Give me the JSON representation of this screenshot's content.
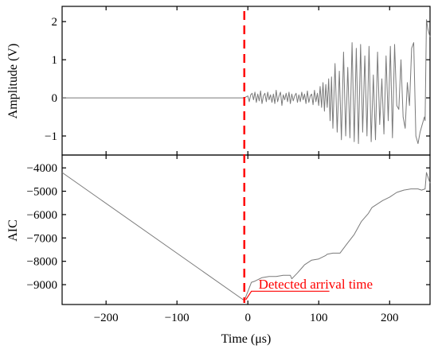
{
  "chart_data": [
    {
      "type": "line",
      "panel": "top",
      "ylabel": "Amplitude (V)",
      "xlabel": "",
      "xlim": [
        -262,
        257
      ],
      "ylim": [
        -1.5,
        2.4
      ],
      "yticks": [
        -1,
        0,
        1,
        2
      ],
      "ytick_labels": [
        "−1",
        "0",
        "1",
        "2"
      ],
      "grid": false,
      "series": [
        {
          "color": "#7a7a7a",
          "x": [
            -262,
            -5,
            0,
            2,
            4,
            6,
            8,
            10,
            12,
            14,
            16,
            18,
            20,
            22,
            24,
            26,
            28,
            30,
            32,
            34,
            36,
            38,
            40,
            42,
            44,
            46,
            48,
            50,
            52,
            54,
            56,
            58,
            60,
            62,
            64,
            66,
            68,
            70,
            72,
            74,
            76,
            78,
            80,
            82,
            84,
            86,
            88,
            90,
            92,
            94,
            96,
            98,
            100,
            102,
            104,
            106,
            108,
            110,
            112,
            114,
            116,
            118,
            120,
            123,
            126,
            129,
            132,
            135,
            138,
            141,
            144,
            147,
            150,
            153,
            156,
            159,
            162,
            165,
            168,
            171,
            174,
            177,
            180,
            183,
            186,
            189,
            192,
            195,
            198,
            201,
            204,
            207,
            210,
            213,
            216,
            219,
            222,
            225,
            228,
            231,
            234,
            237,
            240,
            243,
            246,
            249,
            250,
            252,
            254,
            257
          ],
          "y": [
            0,
            0,
            0.05,
            -0.1,
            0.08,
            0.12,
            -0.05,
            0.15,
            -0.12,
            0.1,
            -0.08,
            0.18,
            -0.15,
            0.05,
            0.12,
            -0.1,
            0.15,
            -0.05,
            0.08,
            -0.12,
            0.1,
            -0.15,
            0.2,
            -0.1,
            0.05,
            0.15,
            -0.2,
            0.08,
            -0.05,
            0.12,
            -0.1,
            0.15,
            -0.15,
            0.1,
            -0.08,
            0.05,
            0.12,
            -0.12,
            0.08,
            -0.1,
            0.15,
            -0.05,
            0.1,
            -0.15,
            0.18,
            -0.12,
            0.05,
            0.1,
            -0.18,
            0.2,
            -0.1,
            0.12,
            -0.2,
            0.3,
            -0.25,
            0.4,
            -0.35,
            0.35,
            -0.25,
            0.5,
            -0.6,
            0.55,
            -0.8,
            0.9,
            -0.9,
            0.7,
            -1.1,
            1.2,
            -1.0,
            0.8,
            -1.05,
            1.45,
            -1.15,
            1.3,
            -1.2,
            1.4,
            -0.9,
            1.1,
            -1.0,
            1.35,
            -1.15,
            0.6,
            -1.1,
            1.2,
            -0.7,
            0.5,
            -0.95,
            1.1,
            -0.6,
            1.35,
            -1.05,
            1.4,
            -0.2,
            -0.3,
            1.0,
            -0.5,
            -0.8,
            0.4,
            -0.2,
            1.3,
            1.45,
            -1.0,
            -1.2,
            -0.9,
            -0.7,
            -0.5,
            -0.6,
            2.05,
            1.8,
            1.6
          ]
        }
      ]
    },
    {
      "type": "line",
      "panel": "bottom",
      "ylabel": "AIC",
      "xlabel": "Time (μs)",
      "xlim": [
        -262,
        257
      ],
      "ylim": [
        -9850,
        -3450
      ],
      "yticks": [
        -9000,
        -8000,
        -7000,
        -6000,
        -5000,
        -4000
      ],
      "ytick_labels": [
        "−9000",
        "−8000",
        "−7000",
        "−6000",
        "−5000",
        "−4000"
      ],
      "xticks": [
        -200,
        -100,
        0,
        100,
        200
      ],
      "xtick_labels": [
        "−200",
        "−100",
        "0",
        "100",
        "200"
      ],
      "grid": false,
      "series": [
        {
          "color": "#7a7a7a",
          "x": [
            -262,
            -5,
            -2,
            0,
            5,
            10,
            20,
            30,
            40,
            50,
            60,
            62,
            70,
            80,
            90,
            100,
            110,
            112,
            120,
            130,
            140,
            150,
            160,
            170,
            175,
            190,
            200,
            210,
            220,
            230,
            240,
            245,
            250,
            252,
            257
          ],
          "y": [
            -4200,
            -9680,
            -9450,
            -9300,
            -8900,
            -8850,
            -8700,
            -8650,
            -8650,
            -8600,
            -8600,
            -8750,
            -8500,
            -8150,
            -7950,
            -7900,
            -7750,
            -7700,
            -7650,
            -7650,
            -7250,
            -6850,
            -6300,
            -5950,
            -5700,
            -5400,
            -5250,
            -5050,
            -4950,
            -4900,
            -4900,
            -4950,
            -4900,
            -4200,
            -4650
          ]
        }
      ]
    }
  ],
  "detection": {
    "time": -5,
    "color": "#ff0000",
    "label": "Detected arrival time",
    "label_anchor": [
      15,
      -9000
    ],
    "pointer_start": [
      -3,
      -9650
    ],
    "pointer_elbow": [
      5,
      -9280
    ],
    "underline_end": [
      115,
      -9280
    ]
  }
}
